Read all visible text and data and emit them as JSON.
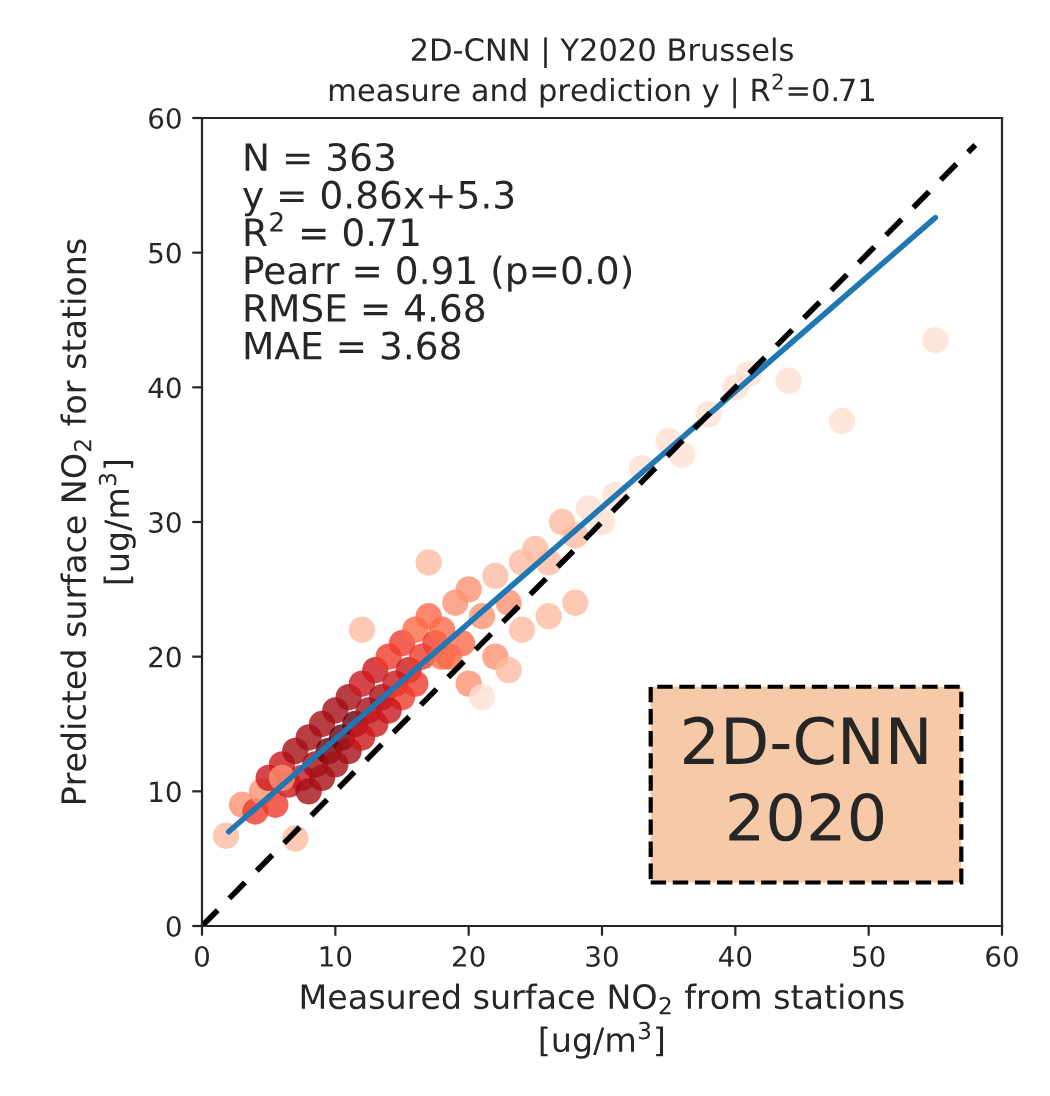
{
  "chart_data": {
    "type": "scatter",
    "title": "2D-CNN | Y2020 Brussels\nmeasure and prediction y | R$^{2}$=0.71",
    "xlabel": "Measured surface NO$_{2}$ from stations\n[ug/m$^{3}$]",
    "ylabel": "Predicted surface NO$_{2}$ for stations\n[ug/m$^{3}$]",
    "xlim": [
      0,
      60
    ],
    "ylim": [
      0,
      60
    ],
    "xticks": [
      0,
      10,
      20,
      30,
      40,
      50,
      60
    ],
    "yticks": [
      0,
      10,
      20,
      30,
      40,
      50,
      60
    ],
    "grid": false,
    "series": [
      {
        "marker": "circle",
        "x": [
          1.8,
          3,
          4,
          4.5,
          5,
          5.5,
          6,
          6.5,
          7,
          7.5,
          8,
          8.5,
          9,
          9.5,
          10,
          10.5,
          11,
          11.5,
          12,
          12.5,
          13,
          13.5,
          14,
          14.5,
          15,
          15.5,
          16,
          16.5,
          17,
          17.5,
          18,
          18.5,
          19,
          19.5,
          20,
          21,
          22,
          23,
          24,
          25,
          26,
          27,
          28,
          29,
          30,
          9,
          11,
          13,
          15,
          8,
          10,
          12,
          14,
          16,
          18,
          20,
          22,
          24,
          26,
          28,
          31,
          33,
          35,
          36,
          38,
          40,
          41,
          44,
          48,
          55,
          7,
          6,
          12,
          17,
          21,
          23
        ],
        "values": [
          6.7,
          9,
          8.5,
          10,
          11,
          9,
          12,
          10.5,
          13,
          11,
          14,
          12,
          15,
          13,
          16,
          14,
          17,
          15,
          18,
          16,
          19,
          17,
          20,
          18,
          21,
          19,
          22,
          20,
          23,
          21,
          22,
          20,
          24,
          21,
          25,
          23,
          26,
          24,
          27,
          28,
          27,
          30,
          29,
          31,
          30,
          11,
          13,
          15,
          17,
          10,
          12,
          14,
          16,
          18,
          20,
          18,
          20,
          22,
          23,
          24,
          32,
          34,
          36,
          35,
          38,
          40,
          41,
          40.5,
          37.5,
          43.5,
          6.5,
          11,
          22,
          27,
          17,
          19
        ],
        "colors": [
          "#fcbba1",
          "#fc9272",
          "#ef3b2c",
          "#fc9272",
          "#cb181d",
          "#ef3b2c",
          "#cb181d",
          "#cb181d",
          "#a50f15",
          "#cb181d",
          "#a50f15",
          "#a50f15",
          "#a50f15",
          "#67000d",
          "#a50f15",
          "#67000d",
          "#a50f15",
          "#67000d",
          "#cb181d",
          "#a50f15",
          "#cb181d",
          "#a50f15",
          "#ef3b2c",
          "#cb181d",
          "#ef3b2c",
          "#cb181d",
          "#fb6a4a",
          "#ef3b2c",
          "#fb6a4a",
          "#ef3b2c",
          "#fb6a4a",
          "#fb6a4a",
          "#fc9272",
          "#fb6a4a",
          "#fc9272",
          "#fc9272",
          "#fcbba1",
          "#fc9272",
          "#fcbba1",
          "#fcbba1",
          "#fcbba1",
          "#fcbba1",
          "#fcbba1",
          "#fee0d2",
          "#fee0d2",
          "#a50f15",
          "#a50f15",
          "#cb181d",
          "#ef3b2c",
          "#a50f15",
          "#a50f15",
          "#cb181d",
          "#cb181d",
          "#ef3b2c",
          "#fb6a4a",
          "#fc9272",
          "#fc9272",
          "#fcbba1",
          "#fcbba1",
          "#fcbba1",
          "#fee0d2",
          "#fee0d2",
          "#fee0d2",
          "#fee0d2",
          "#fee0d2",
          "#fee0d2",
          "#fee0d2",
          "#fee0d2",
          "#fee0d2",
          "#fee0d2",
          "#fcbba1",
          "#fc9272",
          "#fcbba1",
          "#fcbba1",
          "#fee0d2",
          "#fcbba1"
        ]
      },
      {
        "type": "line",
        "x": [
          2,
          55
        ],
        "values": [
          7.0,
          52.6
        ],
        "color": "#1f77b4",
        "line_style": "solid"
      },
      {
        "type": "line",
        "x": [
          0,
          58
        ],
        "values": [
          0,
          58
        ],
        "color": "#000000",
        "line_style": "dashed"
      }
    ],
    "annotations": [
      "N = 363\ny = 0.86x+5.3\nR$^{2}$ = 0.71\nPearr = 0.91 (p=0.0)\nRMSE = 4.68\nMAE = 3.68",
      "2D-CNN\n2020"
    ]
  }
}
